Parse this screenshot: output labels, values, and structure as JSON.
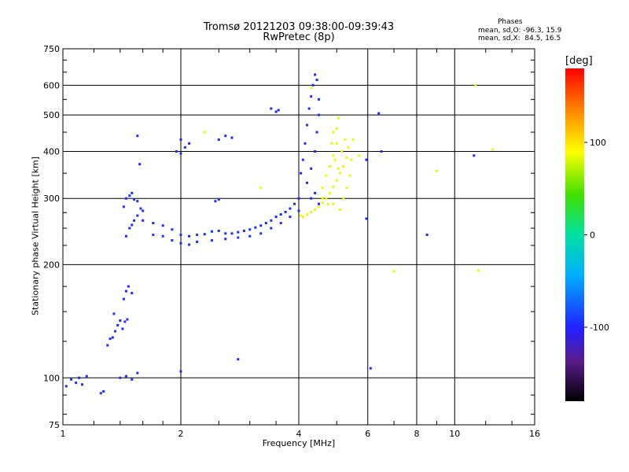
{
  "header": {
    "title": "Tromsø 20121203 09:38:00-09:39:43",
    "subtitle": "RwPretec (8p)"
  },
  "phases": {
    "title": "Phases",
    "o_line": "mean, sd,O: -96.3, 15.9",
    "x_line": "mean, sd,X:  84.5, 16.5"
  },
  "colorbar": {
    "label": "[deg]",
    "range": [
      -180,
      180
    ],
    "ticks": [
      "100",
      "0",
      "-100"
    ],
    "tick_values": [
      100,
      0,
      -100
    ]
  },
  "chart_data": {
    "type": "scatter",
    "xlabel": "Frequency [MHz]",
    "ylabel": "Stationary phase Virtual Height [km]",
    "xscale": "log",
    "yscale": "log",
    "xlim": [
      1,
      16
    ],
    "ylim": [
      75,
      750
    ],
    "xticks": [
      1,
      2,
      4,
      6,
      8,
      10,
      16
    ],
    "xtick_labels": [
      "1",
      "2",
      "4",
      "6",
      "8",
      "10",
      "16"
    ],
    "yticks": [
      75,
      100,
      200,
      300,
      400,
      500,
      600,
      750
    ],
    "ytick_labels": [
      "75",
      "100",
      "200",
      "300",
      "400",
      "500",
      "600",
      "750"
    ],
    "grid": true,
    "series": [
      {
        "name": "O",
        "color_phase": -96.3,
        "points": [
          [
            1.02,
            95
          ],
          [
            1.05,
            99
          ],
          [
            1.08,
            97
          ],
          [
            1.1,
            100
          ],
          [
            1.12,
            96
          ],
          [
            1.15,
            101
          ],
          [
            1.25,
            91
          ],
          [
            1.27,
            92
          ],
          [
            1.3,
            122
          ],
          [
            1.32,
            127
          ],
          [
            1.34,
            128
          ],
          [
            1.36,
            133
          ],
          [
            1.38,
            138
          ],
          [
            1.4,
            142
          ],
          [
            1.42,
            135
          ],
          [
            1.44,
            141
          ],
          [
            1.46,
            143
          ],
          [
            1.35,
            148
          ],
          [
            1.43,
            162
          ],
          [
            1.45,
            170
          ],
          [
            1.47,
            175
          ],
          [
            1.5,
            168
          ],
          [
            1.4,
            100
          ],
          [
            1.45,
            101
          ],
          [
            1.5,
            99
          ],
          [
            1.55,
            103
          ],
          [
            1.43,
            285
          ],
          [
            1.45,
            300
          ],
          [
            1.48,
            305
          ],
          [
            1.5,
            310
          ],
          [
            1.52,
            298
          ],
          [
            1.55,
            295
          ],
          [
            1.58,
            282
          ],
          [
            1.6,
            278
          ],
          [
            1.55,
            440
          ],
          [
            1.57,
            370
          ],
          [
            1.45,
            238
          ],
          [
            1.48,
            250
          ],
          [
            1.5,
            255
          ],
          [
            1.52,
            262
          ],
          [
            1.55,
            270
          ],
          [
            1.6,
            262
          ],
          [
            1.7,
            258
          ],
          [
            1.8,
            254
          ],
          [
            1.9,
            248
          ],
          [
            2.0,
            240
          ],
          [
            2.1,
            238
          ],
          [
            2.2,
            240
          ],
          [
            2.3,
            241
          ],
          [
            2.4,
            245
          ],
          [
            2.5,
            246
          ],
          [
            2.6,
            242
          ],
          [
            2.7,
            242
          ],
          [
            2.8,
            244
          ],
          [
            2.9,
            246
          ],
          [
            3.0,
            248
          ],
          [
            3.1,
            251
          ],
          [
            3.2,
            254
          ],
          [
            3.3,
            258
          ],
          [
            3.4,
            262
          ],
          [
            3.5,
            268
          ],
          [
            3.6,
            272
          ],
          [
            3.7,
            276
          ],
          [
            3.8,
            282
          ],
          [
            3.9,
            290
          ],
          [
            4.0,
            300
          ],
          [
            1.7,
            240
          ],
          [
            1.8,
            238
          ],
          [
            1.9,
            232
          ],
          [
            2.0,
            228
          ],
          [
            2.1,
            226
          ],
          [
            2.2,
            230
          ],
          [
            2.4,
            232
          ],
          [
            2.6,
            234
          ],
          [
            2.8,
            236
          ],
          [
            3.0,
            238
          ],
          [
            3.2,
            242
          ],
          [
            3.4,
            250
          ],
          [
            3.6,
            258
          ],
          [
            3.8,
            268
          ],
          [
            4.0,
            278
          ],
          [
            2.0,
            430
          ],
          [
            2.05,
            410
          ],
          [
            2.1,
            420
          ],
          [
            2.5,
            430
          ],
          [
            2.6,
            440
          ],
          [
            2.7,
            435
          ],
          [
            2.0,
            395
          ],
          [
            1.95,
            400
          ],
          [
            2.45,
            295
          ],
          [
            2.5,
            298
          ],
          [
            3.4,
            520
          ],
          [
            3.5,
            510
          ],
          [
            3.55,
            515
          ],
          [
            4.05,
            350
          ],
          [
            4.1,
            380
          ],
          [
            4.15,
            420
          ],
          [
            4.2,
            470
          ],
          [
            4.25,
            520
          ],
          [
            4.3,
            560
          ],
          [
            4.35,
            600
          ],
          [
            4.4,
            640
          ],
          [
            4.45,
            620
          ],
          [
            4.2,
            330
          ],
          [
            4.3,
            360
          ],
          [
            4.4,
            400
          ],
          [
            4.45,
            450
          ],
          [
            4.5,
            500
          ],
          [
            4.5,
            550
          ],
          [
            4.3,
            300
          ],
          [
            4.4,
            310
          ],
          [
            4.5,
            290
          ],
          [
            2.8,
            112
          ],
          [
            2.0,
            104
          ],
          [
            6.1,
            106
          ],
          [
            5.95,
            265
          ],
          [
            5.95,
            380
          ],
          [
            6.5,
            400
          ],
          [
            6.4,
            505
          ],
          [
            8.5,
            240
          ],
          [
            11.2,
            390
          ]
        ]
      },
      {
        "name": "X",
        "color_phase": 84.5,
        "points": [
          [
            4.05,
            270
          ],
          [
            4.1,
            268
          ],
          [
            4.2,
            272
          ],
          [
            4.3,
            276
          ],
          [
            4.4,
            280
          ],
          [
            4.5,
            285
          ],
          [
            4.6,
            292
          ],
          [
            4.7,
            300
          ],
          [
            4.8,
            310
          ],
          [
            4.9,
            322
          ],
          [
            5.0,
            335
          ],
          [
            5.1,
            350
          ],
          [
            5.2,
            365
          ],
          [
            5.3,
            385
          ],
          [
            5.2,
            300
          ],
          [
            5.3,
            320
          ],
          [
            5.4,
            345
          ],
          [
            4.6,
            320
          ],
          [
            4.7,
            345
          ],
          [
            4.8,
            365
          ],
          [
            4.9,
            390
          ],
          [
            5.0,
            420
          ],
          [
            5.0,
            460
          ],
          [
            5.05,
            490
          ],
          [
            4.85,
            420
          ],
          [
            4.9,
            450
          ],
          [
            5.15,
            400
          ],
          [
            5.25,
            430
          ],
          [
            5.35,
            410
          ],
          [
            5.45,
            380
          ],
          [
            5.5,
            430
          ],
          [
            5.7,
            390
          ],
          [
            4.95,
            380
          ],
          [
            5.05,
            360
          ],
          [
            4.6,
            300
          ],
          [
            4.75,
            290
          ],
          [
            4.9,
            290
          ],
          [
            5.1,
            280
          ],
          [
            4.3,
            590
          ],
          [
            7.0,
            192
          ],
          [
            11.5,
            193
          ],
          [
            11.3,
            600
          ],
          [
            2.3,
            450
          ],
          [
            3.2,
            320
          ],
          [
            9.0,
            355
          ],
          [
            12.5,
            405
          ]
        ]
      }
    ]
  }
}
